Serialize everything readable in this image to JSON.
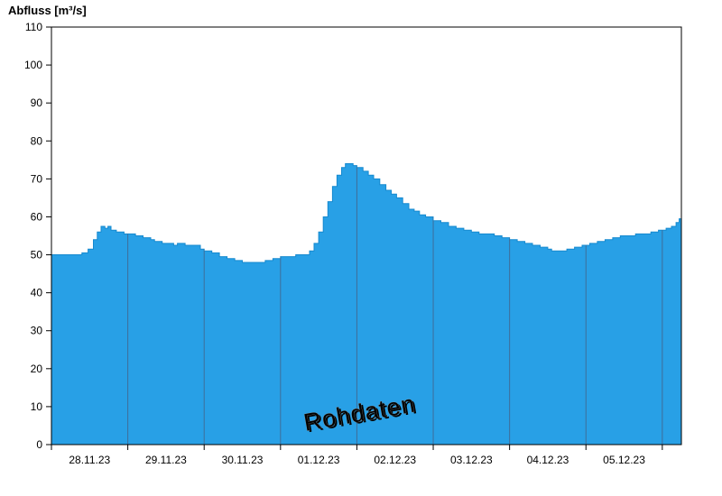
{
  "chart_data": {
    "type": "area",
    "title": "Abfluss [m³/s]",
    "ylabel": "Abfluss [m³/s]",
    "xlabel": "",
    "watermark": "Rohdaten",
    "xlim": [
      0,
      8.25
    ],
    "ylim": [
      0,
      110
    ],
    "y_ticks": [
      0,
      10,
      20,
      30,
      40,
      50,
      60,
      70,
      80,
      90,
      100,
      110
    ],
    "x_ticks": [
      0,
      1,
      2,
      3,
      4,
      5,
      6,
      7,
      8
    ],
    "x_grid_days": [
      1,
      2,
      3,
      4,
      5,
      6,
      7,
      8
    ],
    "x_labels": [
      "28.11.23",
      "29.11.23",
      "30.11.23",
      "01.12.23",
      "02.12.23",
      "03.12.23",
      "04.12.23",
      "05.12.23"
    ],
    "x_label_positions": [
      0.5,
      1.5,
      2.5,
      3.5,
      4.5,
      5.5,
      6.5,
      7.5
    ],
    "x": [
      0,
      0.15,
      0.3,
      0.4,
      0.48,
      0.55,
      0.6,
      0.65,
      0.7,
      0.74,
      0.78,
      0.85,
      0.95,
      1.05,
      1.1,
      1.2,
      1.3,
      1.35,
      1.45,
      1.55,
      1.6,
      1.65,
      1.75,
      1.85,
      1.95,
      2,
      2.1,
      2.2,
      2.3,
      2.4,
      2.5,
      2.6,
      2.7,
      2.8,
      2.9,
      3,
      3.1,
      3.2,
      3.3,
      3.38,
      3.44,
      3.5,
      3.56,
      3.62,
      3.68,
      3.74,
      3.8,
      3.85,
      3.9,
      3.95,
      4,
      4.08,
      4.15,
      4.22,
      4.3,
      4.38,
      4.45,
      4.52,
      4.6,
      4.68,
      4.75,
      4.82,
      4.9,
      5,
      5.1,
      5.2,
      5.3,
      5.4,
      5.5,
      5.6,
      5.7,
      5.8,
      5.9,
      6,
      6.1,
      6.2,
      6.3,
      6.4,
      6.5,
      6.55,
      6.65,
      6.75,
      6.85,
      6.95,
      7.05,
      7.15,
      7.25,
      7.35,
      7.45,
      7.55,
      7.65,
      7.75,
      7.85,
      7.95,
      8.05,
      8.12,
      8.18,
      8.22,
      8.25
    ],
    "values": [
      50,
      50,
      50,
      50.5,
      51.5,
      54,
      56,
      57.5,
      57,
      57.5,
      56.5,
      56,
      55.5,
      55.5,
      55,
      54.5,
      54,
      53.5,
      53,
      53,
      52.5,
      53,
      52.5,
      52.5,
      51.5,
      51,
      50.5,
      49.5,
      49,
      48.5,
      48,
      48,
      48,
      48.5,
      49,
      49.5,
      49.5,
      50,
      50,
      51,
      53,
      56,
      60,
      64,
      68,
      71,
      73,
      74,
      74,
      73.5,
      73,
      72,
      71,
      70,
      68.5,
      67,
      66,
      65,
      63.5,
      62,
      61.5,
      60.5,
      60,
      59,
      58.5,
      57.5,
      57,
      56.5,
      56,
      55.5,
      55.5,
      55,
      54.5,
      54,
      53.5,
      53,
      52.5,
      52,
      51.5,
      51,
      51,
      51.5,
      52,
      52.5,
      53,
      53.5,
      54,
      54.5,
      55,
      55,
      55.5,
      55.5,
      56,
      56.5,
      57,
      57.5,
      58.5,
      59.5,
      59.5
    ],
    "series_name": "Abfluss",
    "grid": "vertical-day-lines-only",
    "legend": "none",
    "colors": {
      "fill": "#28A0E6",
      "line": "#1589CF",
      "grid": "#3F6D99",
      "axis": "#000000",
      "watermark_fill": "#FFFFFF",
      "watermark_outline": "#8C8C8C"
    }
  }
}
